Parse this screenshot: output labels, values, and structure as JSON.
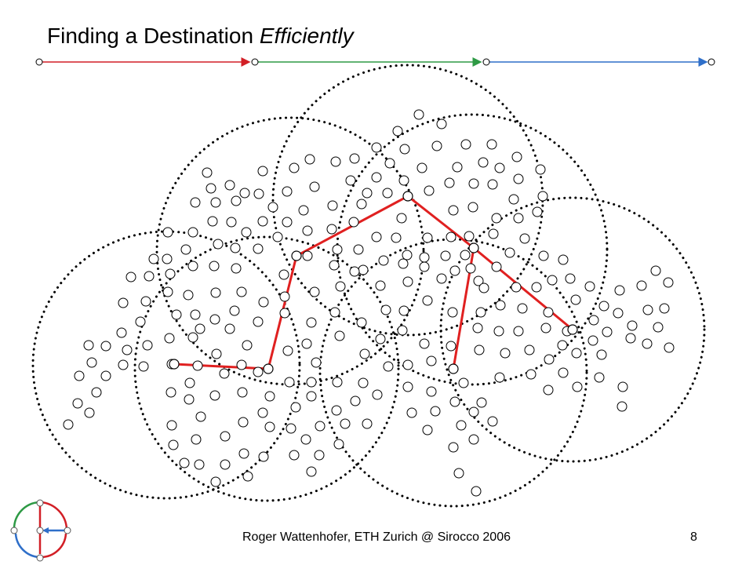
{
  "slide": {
    "title_plain": "Finding a Destination ",
    "title_emph": "Efficiently",
    "footer_text": "Roger Wattenhofer, ETH Zurich @ Sirocco 2006",
    "page_number": "8"
  },
  "header_bar": {
    "segment_colors": [
      "#d21f26",
      "#2e9a45",
      "#2f6fc9"
    ]
  },
  "diagram": {
    "circle_style": "dotted",
    "route_color": "#e02020",
    "route_stops": 7,
    "node_count": 275
  },
  "logo": {
    "colors": [
      "#d21f26",
      "#2e9a45",
      "#2f6fc9"
    ]
  }
}
